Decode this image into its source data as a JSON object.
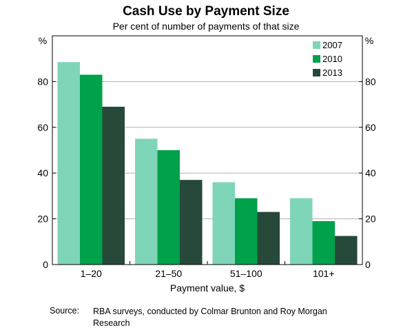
{
  "colors": {
    "2007": "#7fd5b7",
    "2010": "#00a14b",
    "2013": "#26493a",
    "grid": "#b0b0b0",
    "axis": "#000000"
  },
  "chart_data": {
    "type": "bar",
    "title": "Cash Use by Payment Size",
    "subtitle": "Per cent of number of payments of that size",
    "xlabel": "Payment value, $",
    "ylabel_left": "%",
    "ylabel_right": "%",
    "ylim": [
      0,
      100
    ],
    "yticks": [
      "0",
      "20",
      "40",
      "60",
      "80"
    ],
    "grid": true,
    "legend_position": "top-right",
    "categories": [
      "1–20",
      "21–50",
      "51–100",
      "101+"
    ],
    "series": [
      {
        "name": "2007",
        "values": [
          88.5,
          55,
          36,
          29
        ]
      },
      {
        "name": "2010",
        "values": [
          83,
          50,
          29,
          19
        ]
      },
      {
        "name": "2013",
        "values": [
          69,
          37,
          23,
          12.5
        ]
      }
    ]
  },
  "source": {
    "label": "Source:",
    "text": "RBA surveys, conducted by Colmar Brunton and Roy Morgan Research"
  }
}
